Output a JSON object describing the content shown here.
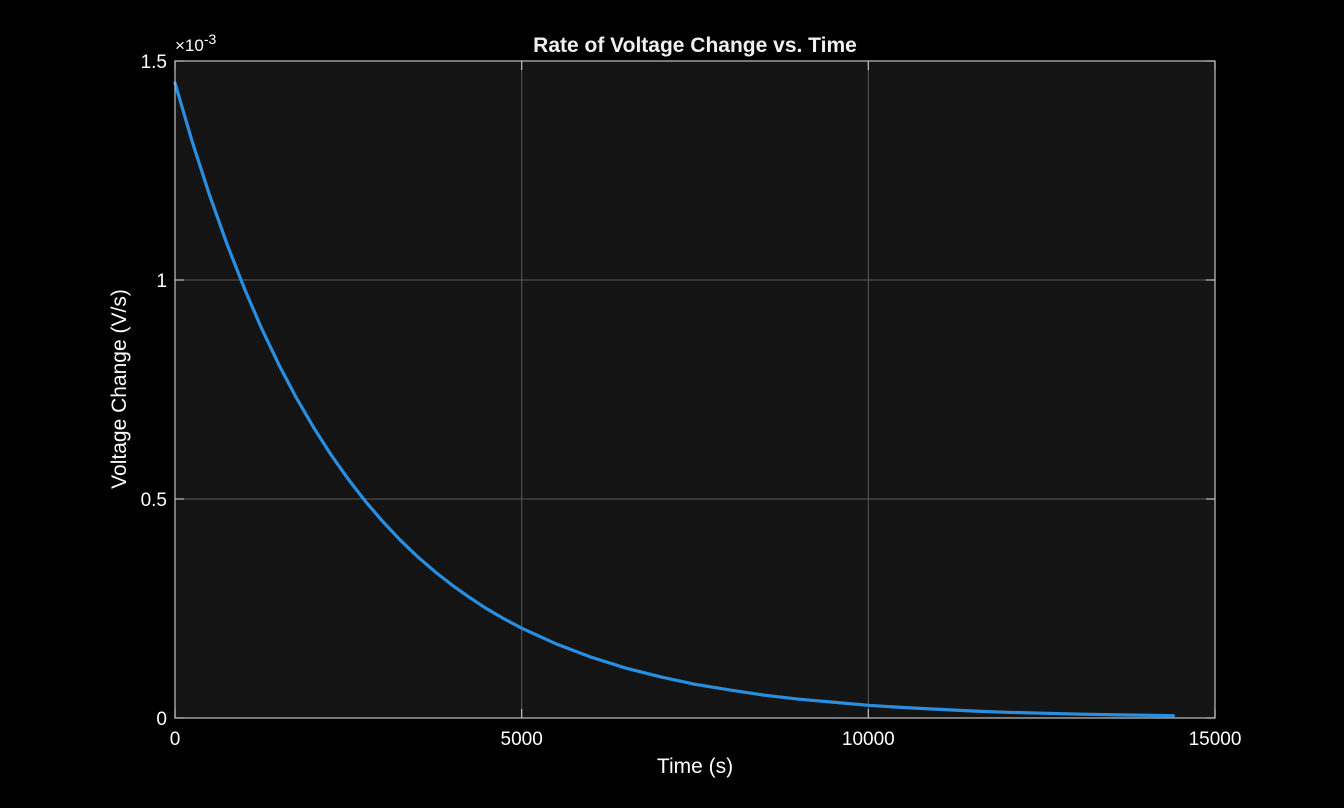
{
  "chart_data": {
    "type": "line",
    "title": "Rate of Voltage Change vs. Time",
    "xlabel": "Time (s)",
    "ylabel": "Voltage Change (V/s)",
    "xlim": [
      0,
      15000
    ],
    "ylim": [
      0,
      1.5
    ],
    "y_scale_factor_label": "×10",
    "y_scale_exponent": "-3",
    "xticks": [
      0,
      5000,
      10000,
      15000
    ],
    "xtick_labels": [
      "0",
      "5000",
      "10000",
      "15000"
    ],
    "yticks": [
      0,
      0.5,
      1,
      1.5
    ],
    "ytick_labels": [
      "0",
      "0.5",
      "1",
      "1.5"
    ],
    "grid": true,
    "series": [
      {
        "color": "#2a8ee0",
        "x": [
          0,
          250,
          500,
          750,
          1000,
          1250,
          1500,
          1750,
          2000,
          2250,
          2500,
          2750,
          3000,
          3250,
          3500,
          3750,
          4000,
          4250,
          4500,
          4750,
          5000,
          5500,
          6000,
          6500,
          7000,
          7500,
          8000,
          8500,
          9000,
          9500,
          10000,
          10500,
          11000,
          11500,
          12000,
          12500,
          13000,
          13500,
          14000,
          14400
        ],
        "values": [
          1.45,
          1.315,
          1.193,
          1.082,
          0.981,
          0.889,
          0.806,
          0.731,
          0.663,
          0.601,
          0.545,
          0.494,
          0.448,
          0.406,
          0.368,
          0.334,
          0.303,
          0.275,
          0.249,
          0.226,
          0.205,
          0.169,
          0.139,
          0.114,
          0.094,
          0.077,
          0.064,
          0.052,
          0.043,
          0.036,
          0.029,
          0.024,
          0.02,
          0.016,
          0.013,
          0.011,
          0.009,
          0.0075,
          0.0062,
          0.0053
        ]
      }
    ]
  },
  "colors": {
    "figure_background": "#000000",
    "axes_background": "#141414",
    "axes_edge": "#c0c0c0",
    "grid": "#5a5a5a",
    "line": "#2a8ee0"
  }
}
